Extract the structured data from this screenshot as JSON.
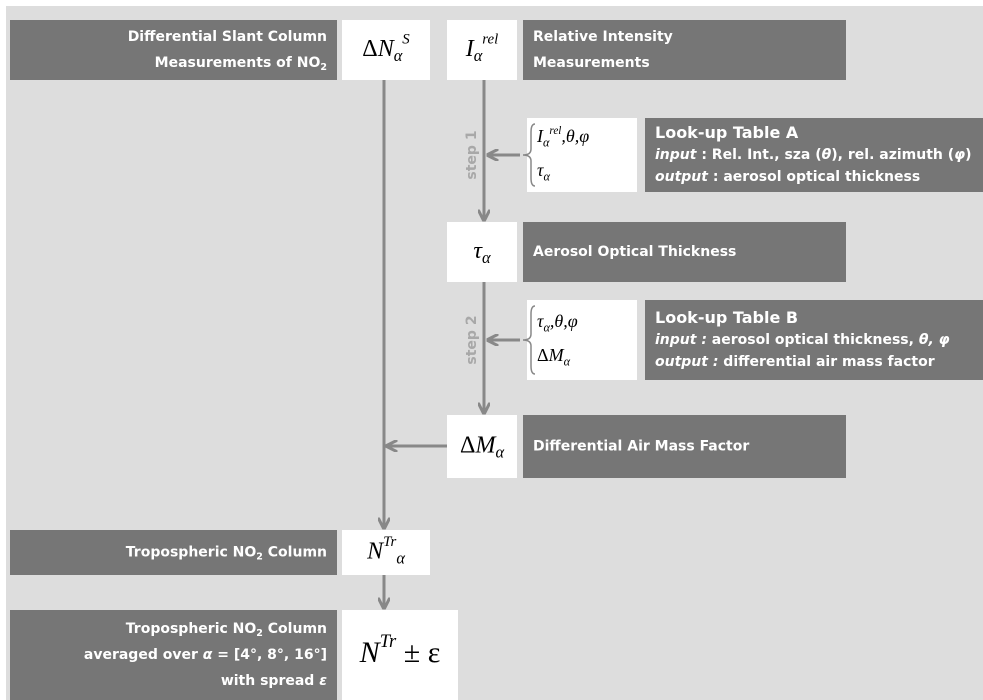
{
  "nodes": {
    "dsc_label": {
      "lines": [
        [
          {
            "t": "Differential Slant Column"
          }
        ],
        [
          {
            "t": "Measurements of NO"
          },
          {
            "t": "2",
            "s": "sub"
          }
        ]
      ]
    },
    "dsc_math": {
      "lines": [
        [
          {
            "t": "Δ",
            "s": "r"
          },
          {
            "t": "N"
          },
          {
            "t": "α",
            "s": "sub"
          },
          {
            "t": "S",
            "s": "sup"
          }
        ]
      ]
    },
    "ri_math": {
      "lines": [
        [
          {
            "t": "I"
          },
          {
            "t": "α",
            "s": "sub"
          },
          {
            "t": "rel",
            "s": "sup"
          }
        ]
      ]
    },
    "ri_label": {
      "lines": [
        [
          {
            "t": "Relative Intensity"
          }
        ],
        [
          {
            "t": "Measurements"
          }
        ]
      ]
    },
    "lutA_in": {
      "lines": [
        [
          {
            "t": "I"
          },
          {
            "t": "α",
            "s": "sub"
          },
          {
            "t": "rel",
            "s": "sup"
          },
          {
            "t": ",θ,φ"
          }
        ],
        [
          {
            "t": "τ"
          },
          {
            "t": "α",
            "s": "sub"
          }
        ]
      ]
    },
    "lutA": {
      "lines": [
        [
          {
            "t": "Look-up Table A",
            "s": "big"
          }
        ],
        [
          {
            "t": "input",
            "s": "i"
          },
          {
            "t": " : Rel. Int., sza ("
          },
          {
            "t": "θ",
            "s": "i"
          },
          {
            "t": "), rel. azimuth ("
          },
          {
            "t": "φ",
            "s": "i"
          },
          {
            "t": ")"
          }
        ],
        [
          {
            "t": "output",
            "s": "i"
          },
          {
            "t": " : aerosol optical thickness"
          }
        ]
      ]
    },
    "aot_math": {
      "lines": [
        [
          {
            "t": "τ"
          },
          {
            "t": "α",
            "s": "sub"
          }
        ]
      ]
    },
    "aot_label": {
      "lines": [
        [
          {
            "t": "Aerosol Optical Thickness"
          }
        ]
      ]
    },
    "lutB_in": {
      "lines": [
        [
          {
            "t": "τ"
          },
          {
            "t": "α",
            "s": "sub"
          },
          {
            "t": ",θ,φ"
          }
        ],
        [
          {
            "t": "Δ",
            "s": "r"
          },
          {
            "t": "M"
          },
          {
            "t": "α",
            "s": "sub"
          }
        ]
      ]
    },
    "lutB": {
      "lines": [
        [
          {
            "t": "Look-up Table B",
            "s": "big"
          }
        ],
        [
          {
            "t": "input :",
            "s": "i"
          },
          {
            "t": " aerosol optical thickness, "
          },
          {
            "t": "θ, φ",
            "s": "i"
          }
        ],
        [
          {
            "t": "output :",
            "s": "i"
          },
          {
            "t": " differential air mass factor"
          }
        ]
      ]
    },
    "amf_math": {
      "lines": [
        [
          {
            "t": "Δ",
            "s": "r"
          },
          {
            "t": "M"
          },
          {
            "t": "α",
            "s": "sub"
          }
        ]
      ]
    },
    "amf_label": {
      "lines": [
        [
          {
            "t": "Differential Air Mass Factor"
          }
        ]
      ]
    },
    "trop_label": {
      "lines": [
        [
          {
            "t": "Tropospheric NO"
          },
          {
            "t": "2",
            "s": "sub"
          },
          {
            "t": " Column"
          }
        ]
      ]
    },
    "trop_math": {
      "lines": [
        [
          {
            "t": "N"
          },
          {
            "t": "Tr",
            "s": "sup"
          },
          {
            "t": "α",
            "s": "sub"
          }
        ]
      ]
    },
    "avg_label": {
      "lines": [
        [
          {
            "t": "Tropospheric NO"
          },
          {
            "t": "2",
            "s": "sub"
          },
          {
            "t": " Column"
          }
        ],
        [
          {
            "t": "averaged over "
          },
          {
            "t": "α",
            "s": "i"
          },
          {
            "t": " = [4°, 8°, 16°]"
          }
        ],
        [
          {
            "t": "with spread "
          },
          {
            "t": "ε",
            "s": "i"
          }
        ]
      ]
    },
    "avg_math": {
      "lines": [
        [
          {
            "t": "N"
          },
          {
            "t": "Tr",
            "s": "sup"
          },
          {
            "t": " ± ε",
            "s": "r"
          }
        ]
      ]
    }
  },
  "steps": [
    "step 1",
    "step 2"
  ]
}
